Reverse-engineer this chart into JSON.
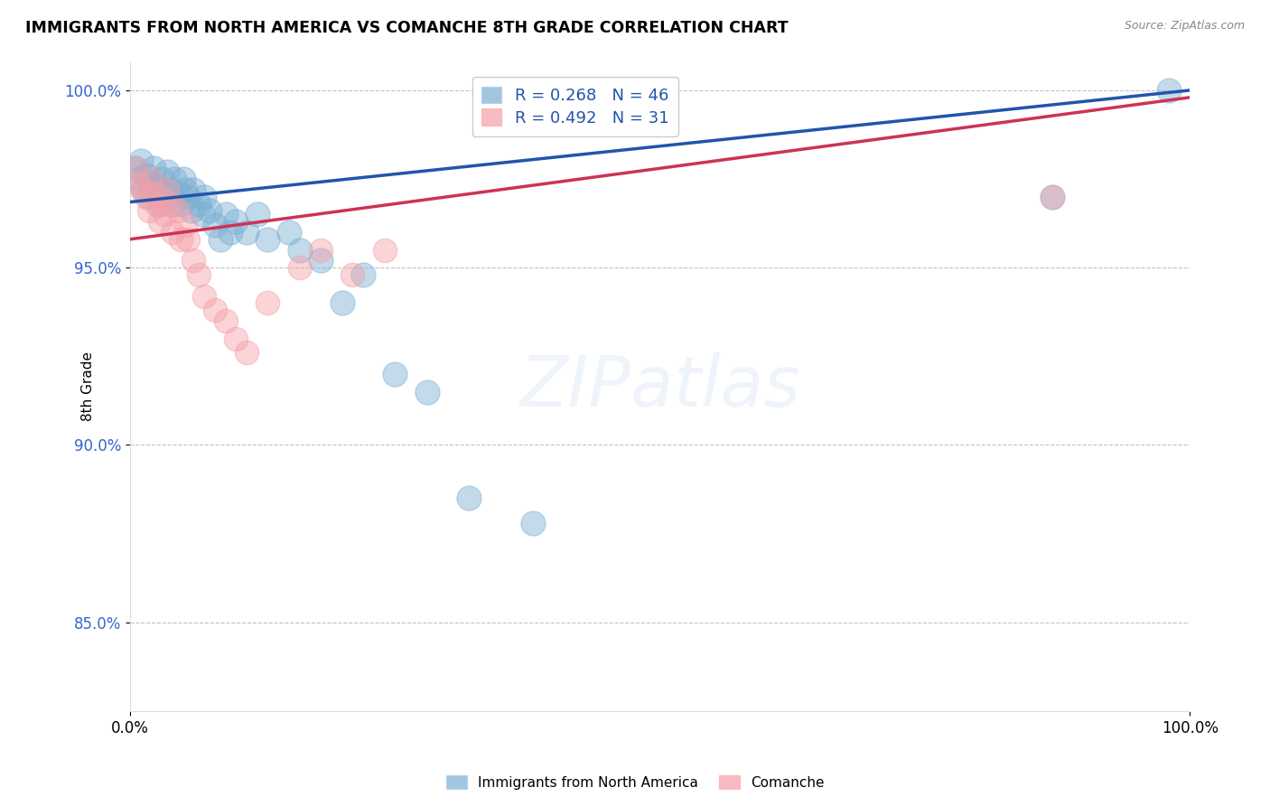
{
  "title": "IMMIGRANTS FROM NORTH AMERICA VS COMANCHE 8TH GRADE CORRELATION CHART",
  "source": "Source: ZipAtlas.com",
  "ylabel": "8th Grade",
  "xlim": [
    0.0,
    1.0
  ],
  "ylim": [
    0.825,
    1.008
  ],
  "yticks": [
    0.85,
    0.9,
    0.95,
    1.0
  ],
  "ytick_labels": [
    "85.0%",
    "90.0%",
    "95.0%",
    "100.0%"
  ],
  "xtick_positions": [
    0.0,
    1.0
  ],
  "xtick_labels": [
    "0.0%",
    "100.0%"
  ],
  "blue_label": "Immigrants from North America",
  "pink_label": "Comanche",
  "blue_R": 0.268,
  "blue_N": 46,
  "pink_R": 0.492,
  "pink_N": 31,
  "blue_color": "#7BAFD4",
  "pink_color": "#F4A0A8",
  "blue_line_color": "#2255AA",
  "pink_line_color": "#CC3355",
  "blue_points_x": [
    0.005,
    0.008,
    0.01,
    0.012,
    0.015,
    0.018,
    0.02,
    0.022,
    0.025,
    0.028,
    0.03,
    0.032,
    0.035,
    0.038,
    0.04,
    0.042,
    0.045,
    0.048,
    0.05,
    0.052,
    0.055,
    0.058,
    0.06,
    0.065,
    0.068,
    0.07,
    0.075,
    0.08,
    0.085,
    0.09,
    0.095,
    0.1,
    0.11,
    0.12,
    0.13,
    0.15,
    0.16,
    0.18,
    0.2,
    0.22,
    0.25,
    0.28,
    0.32,
    0.38,
    0.87,
    0.98
  ],
  "blue_points_y": [
    0.978,
    0.975,
    0.98,
    0.972,
    0.976,
    0.97,
    0.974,
    0.978,
    0.973,
    0.968,
    0.975,
    0.971,
    0.977,
    0.972,
    0.968,
    0.975,
    0.971,
    0.968,
    0.975,
    0.972,
    0.97,
    0.966,
    0.972,
    0.968,
    0.965,
    0.97,
    0.966,
    0.962,
    0.958,
    0.965,
    0.96,
    0.963,
    0.96,
    0.965,
    0.958,
    0.96,
    0.955,
    0.952,
    0.94,
    0.948,
    0.92,
    0.915,
    0.885,
    0.878,
    0.97,
    1.0
  ],
  "pink_points_x": [
    0.005,
    0.008,
    0.012,
    0.015,
    0.018,
    0.02,
    0.022,
    0.025,
    0.028,
    0.03,
    0.032,
    0.035,
    0.038,
    0.04,
    0.045,
    0.048,
    0.052,
    0.055,
    0.06,
    0.065,
    0.07,
    0.08,
    0.09,
    0.1,
    0.11,
    0.13,
    0.16,
    0.18,
    0.21,
    0.24,
    0.87
  ],
  "pink_points_y": [
    0.978,
    0.974,
    0.972,
    0.97,
    0.966,
    0.975,
    0.971,
    0.968,
    0.963,
    0.97,
    0.965,
    0.972,
    0.968,
    0.96,
    0.966,
    0.958,
    0.962,
    0.958,
    0.952,
    0.948,
    0.942,
    0.938,
    0.935,
    0.93,
    0.926,
    0.94,
    0.95,
    0.955,
    0.948,
    0.955,
    0.97
  ],
  "blue_line_x0": 0.0,
  "blue_line_y0": 0.9685,
  "blue_line_x1": 1.0,
  "blue_line_y1": 1.0,
  "pink_line_x0": 0.0,
  "pink_line_y0": 0.958,
  "pink_line_x1": 1.0,
  "pink_line_y1": 0.998
}
